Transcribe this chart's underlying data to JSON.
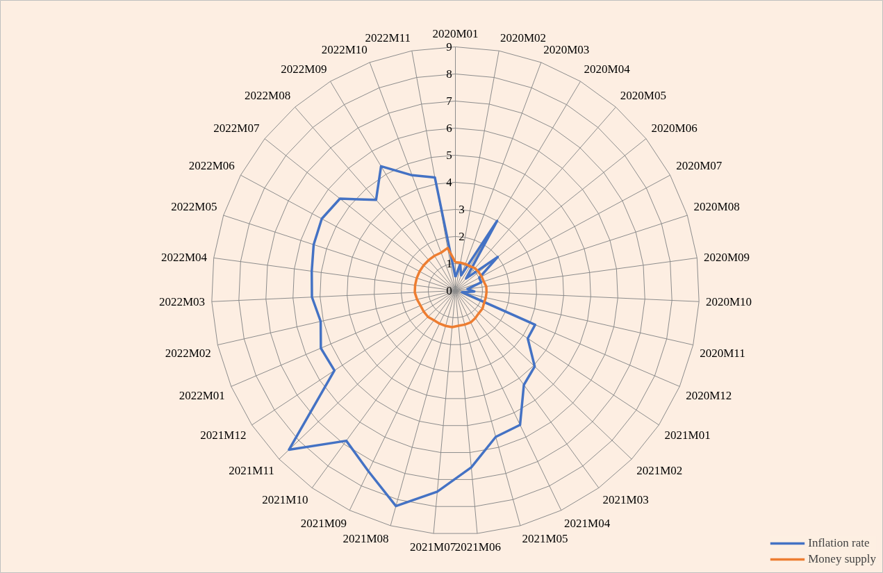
{
  "chart_data": {
    "type": "radar",
    "categories": [
      "2020M01",
      "2020M02",
      "2020M03",
      "2020M04",
      "2020M05",
      "2020M06",
      "2020M07",
      "2020M08",
      "2020M09",
      "2020M10",
      "2020M11",
      "2020M12",
      "2021M01",
      "2021M02",
      "2021M03",
      "2021M04",
      "2021M05",
      "2021M06",
      "2021M07",
      "2021M08",
      "2021M09",
      "2021M10",
      "2021M11",
      "2021M12",
      "2022M01",
      "2022M02",
      "2022M03",
      "2022M04",
      "2022M05",
      "2022M06",
      "2022M07",
      "2022M08",
      "2022M09",
      "2022M10",
      "2022M11"
    ],
    "series": [
      {
        "name": "Inflation rate",
        "color": "#4472c4",
        "values": [
          0.5,
          1.0,
          0.6,
          3.0,
          0.6,
          2.0,
          1.0,
          1.0,
          0.45,
          0.7,
          0.25,
          3.2,
          3.2,
          4.05,
          4.3,
          5.5,
          5.6,
          6.55,
          7.45,
          8.25,
          7.4,
          6.85,
          8.5,
          5.35,
          5.4,
          5.1,
          5.3,
          5.35,
          5.5,
          5.6,
          5.45,
          4.45,
          5.35,
          4.55,
          4.25
        ]
      },
      {
        "name": "Money supply",
        "color": "#ed7d31",
        "values": [
          1.05,
          1.05,
          1.05,
          1.05,
          1.1,
          1.1,
          1.1,
          1.1,
          1.15,
          1.15,
          1.15,
          1.15,
          1.2,
          1.2,
          1.25,
          1.3,
          1.3,
          1.3,
          1.35,
          1.35,
          1.35,
          1.35,
          1.4,
          1.4,
          1.4,
          1.45,
          1.5,
          1.5,
          1.5,
          1.5,
          1.5,
          1.5,
          1.5,
          1.5,
          1.6
        ]
      }
    ],
    "ylim": [
      0,
      9
    ],
    "yticks": [
      0,
      1,
      2,
      3,
      4,
      5,
      6,
      7,
      8,
      9
    ],
    "grid": true,
    "legend": "bottom right",
    "line_style": "solid"
  }
}
